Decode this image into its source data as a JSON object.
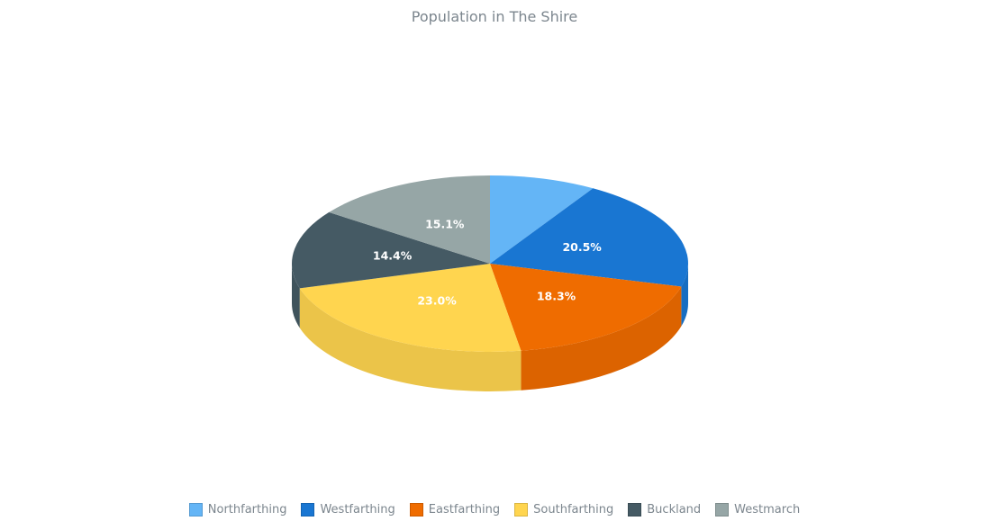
{
  "chart_data": {
    "type": "pie",
    "title": "Population in The Shire",
    "series": [
      {
        "name": "Northfarthing",
        "value": 8.7,
        "label": "",
        "color": "#64b5f6"
      },
      {
        "name": "Westfarthing",
        "value": 20.5,
        "label": "20.5%",
        "color": "#1976d2"
      },
      {
        "name": "Eastfarthing",
        "value": 18.3,
        "label": "18.3%",
        "color": "#ef6c00"
      },
      {
        "name": "Southfarthing",
        "value": 23.0,
        "label": "23.0%",
        "color": "#ffd54f"
      },
      {
        "name": "Buckland",
        "value": 14.4,
        "label": "14.4%",
        "color": "#455a64"
      },
      {
        "name": "Westmarch",
        "value": 15.1,
        "label": "15.1%",
        "color": "#96a6a6"
      }
    ],
    "legend_position": "bottom"
  }
}
